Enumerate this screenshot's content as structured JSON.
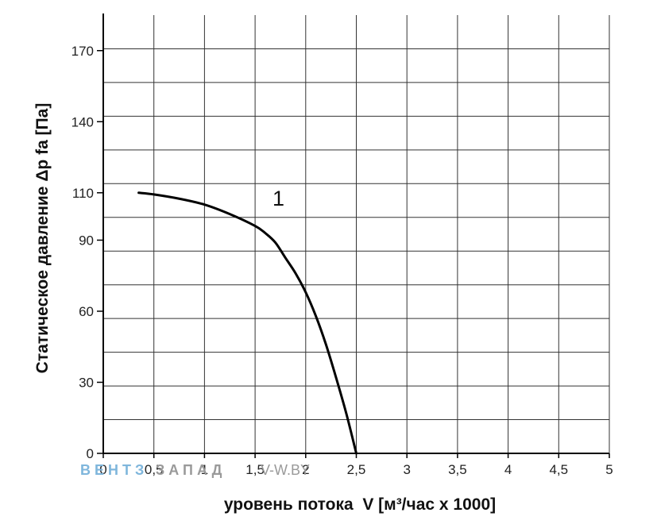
{
  "chart_data": {
    "type": "line",
    "xlabel": "уровень потока  V [м³/час x 1000]",
    "ylabel": "Статическое давление  Δp fa [Па]",
    "xlim": [
      0,
      5
    ],
    "ylim": [
      0,
      185
    ],
    "x_ticks": [
      "0",
      "0,5",
      "1",
      "1,5",
      "2",
      "2,5",
      "3",
      "3,5",
      "4",
      "4,5",
      "5"
    ],
    "y_ticks": [
      "0",
      "30",
      "60",
      "90",
      "110",
      "140",
      "170"
    ],
    "y_tick_values": [
      0,
      30,
      60,
      90,
      110,
      140,
      170
    ],
    "grid": true,
    "series": [
      {
        "name": "1",
        "x": [
          0.35,
          0.5,
          0.75,
          1.0,
          1.25,
          1.5,
          1.6,
          1.7,
          1.8,
          1.9,
          2.0,
          2.1,
          2.2,
          2.3,
          2.4,
          2.5
        ],
        "y": [
          110,
          109.3,
          107.5,
          105,
          101,
          96,
          93,
          89,
          82.5,
          76,
          68,
          58,
          46,
          32,
          17,
          0
        ]
      }
    ],
    "color": "#000000"
  },
  "watermark": {
    "part1": "ВЕНТЗ",
    "part2": "ЗАПАД",
    "part3": "V-W.BY",
    "color1": "#7fb6dc",
    "color2": "#9a9a9a"
  }
}
